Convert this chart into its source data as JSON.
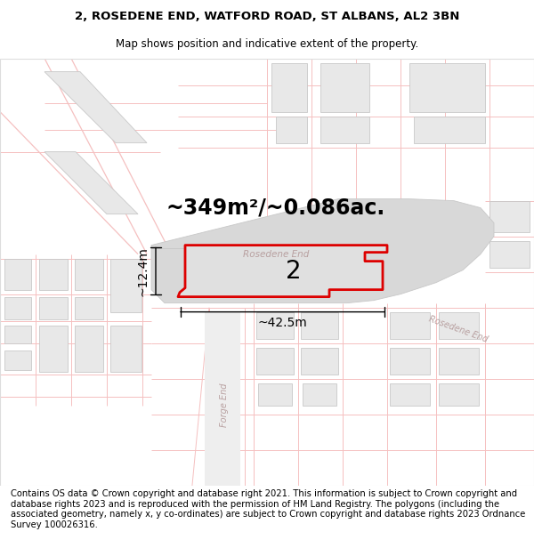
{
  "title_line1": "2, ROSEDENE END, WATFORD ROAD, ST ALBANS, AL2 3BN",
  "title_line2": "Map shows position and indicative extent of the property.",
  "area_text": "~349m²/~0.086ac.",
  "label_number": "2",
  "dim_width": "~42.5m",
  "dim_height": "~12.4m",
  "road_label_top": "Rosedene End",
  "road_label_right": "Rosedene End",
  "road_label_forge": "Forge End",
  "footer_text": "Contains OS data © Crown copyright and database right 2021. This information is subject to Crown copyright and database rights 2023 and is reproduced with the permission of HM Land Registry. The polygons (including the associated geometry, namely x, y co-ordinates) are subject to Crown copyright and database rights 2023 Ordnance Survey 100026316.",
  "bg_color": "#ffffff",
  "map_bg": "#ffffff",
  "line_color": "#f5c0c0",
  "road_gray": "#d8d8d8",
  "block_fill": "#e8e8e8",
  "block_edge": "#c8c8c8",
  "property_fill": "#e0e0e0",
  "property_outline": "#dd0000",
  "text_color": "#000000",
  "road_text_color": "#b8a0a0",
  "title_fontsize": 9.5,
  "subtitle_fontsize": 8.5,
  "area_fontsize": 17,
  "label_fontsize": 20,
  "dim_fontsize": 10,
  "footer_fontsize": 7.2
}
